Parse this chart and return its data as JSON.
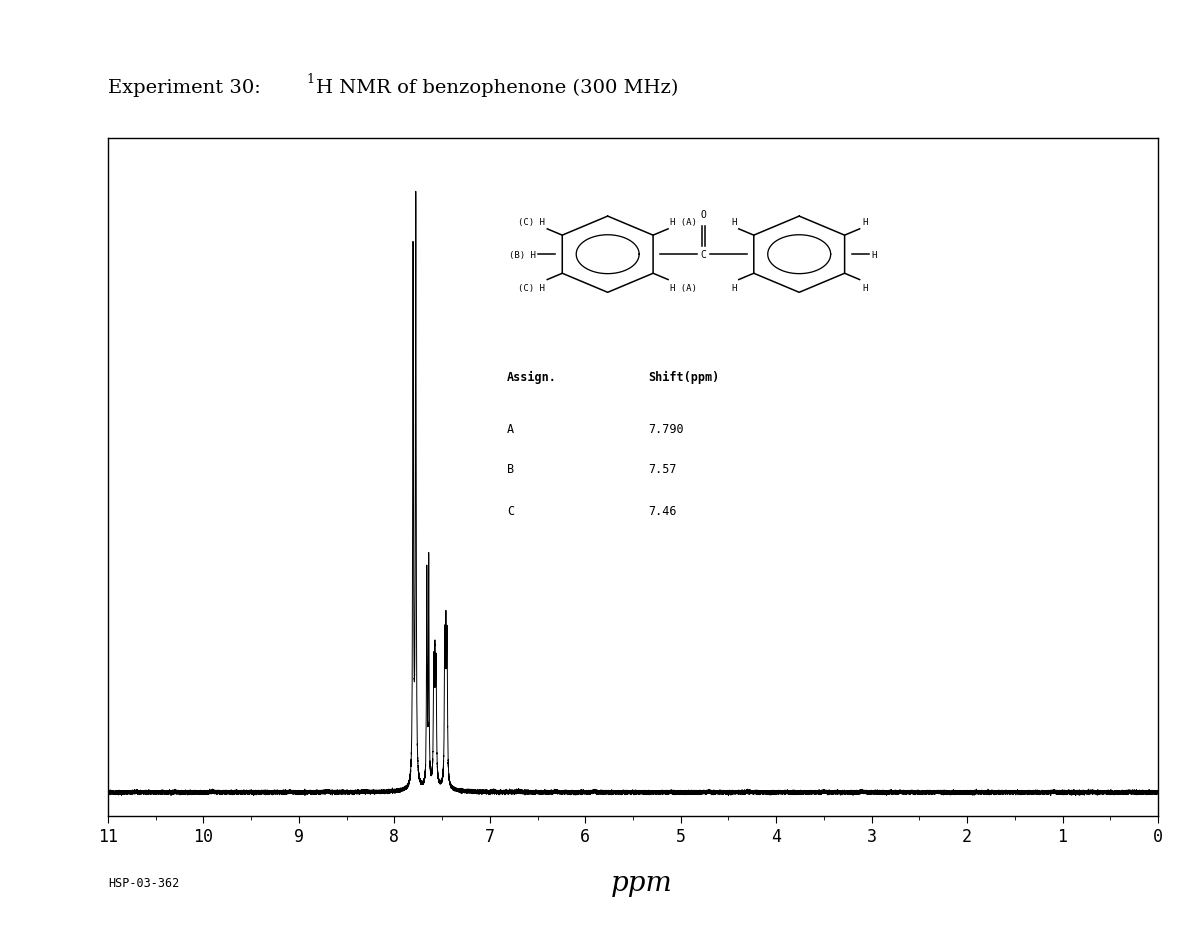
{
  "title_part1": "Experiment 30: ",
  "title_superscript": "1",
  "title_part2": "H NMR of benzophenone (300 MHz)",
  "xlabel_label": "ppm",
  "sample_id": "HSP-03-362",
  "x_ticks": [
    11,
    10,
    9,
    8,
    7,
    6,
    5,
    4,
    3,
    2,
    1,
    0
  ],
  "peak_A": 7.79,
  "peak_B": 7.575,
  "peak_C": 7.46,
  "assignments": [
    {
      "label": "A",
      "shift": "7.790"
    },
    {
      "label": "B",
      "shift": "7.57"
    },
    {
      "label": "C",
      "shift": "7.46"
    }
  ],
  "background_color": "#ffffff",
  "line_color": "#000000",
  "noise_amplitude": 0.0008,
  "title_fontsize": 14,
  "tick_fontsize": 12,
  "ppm_fontsize": 20
}
